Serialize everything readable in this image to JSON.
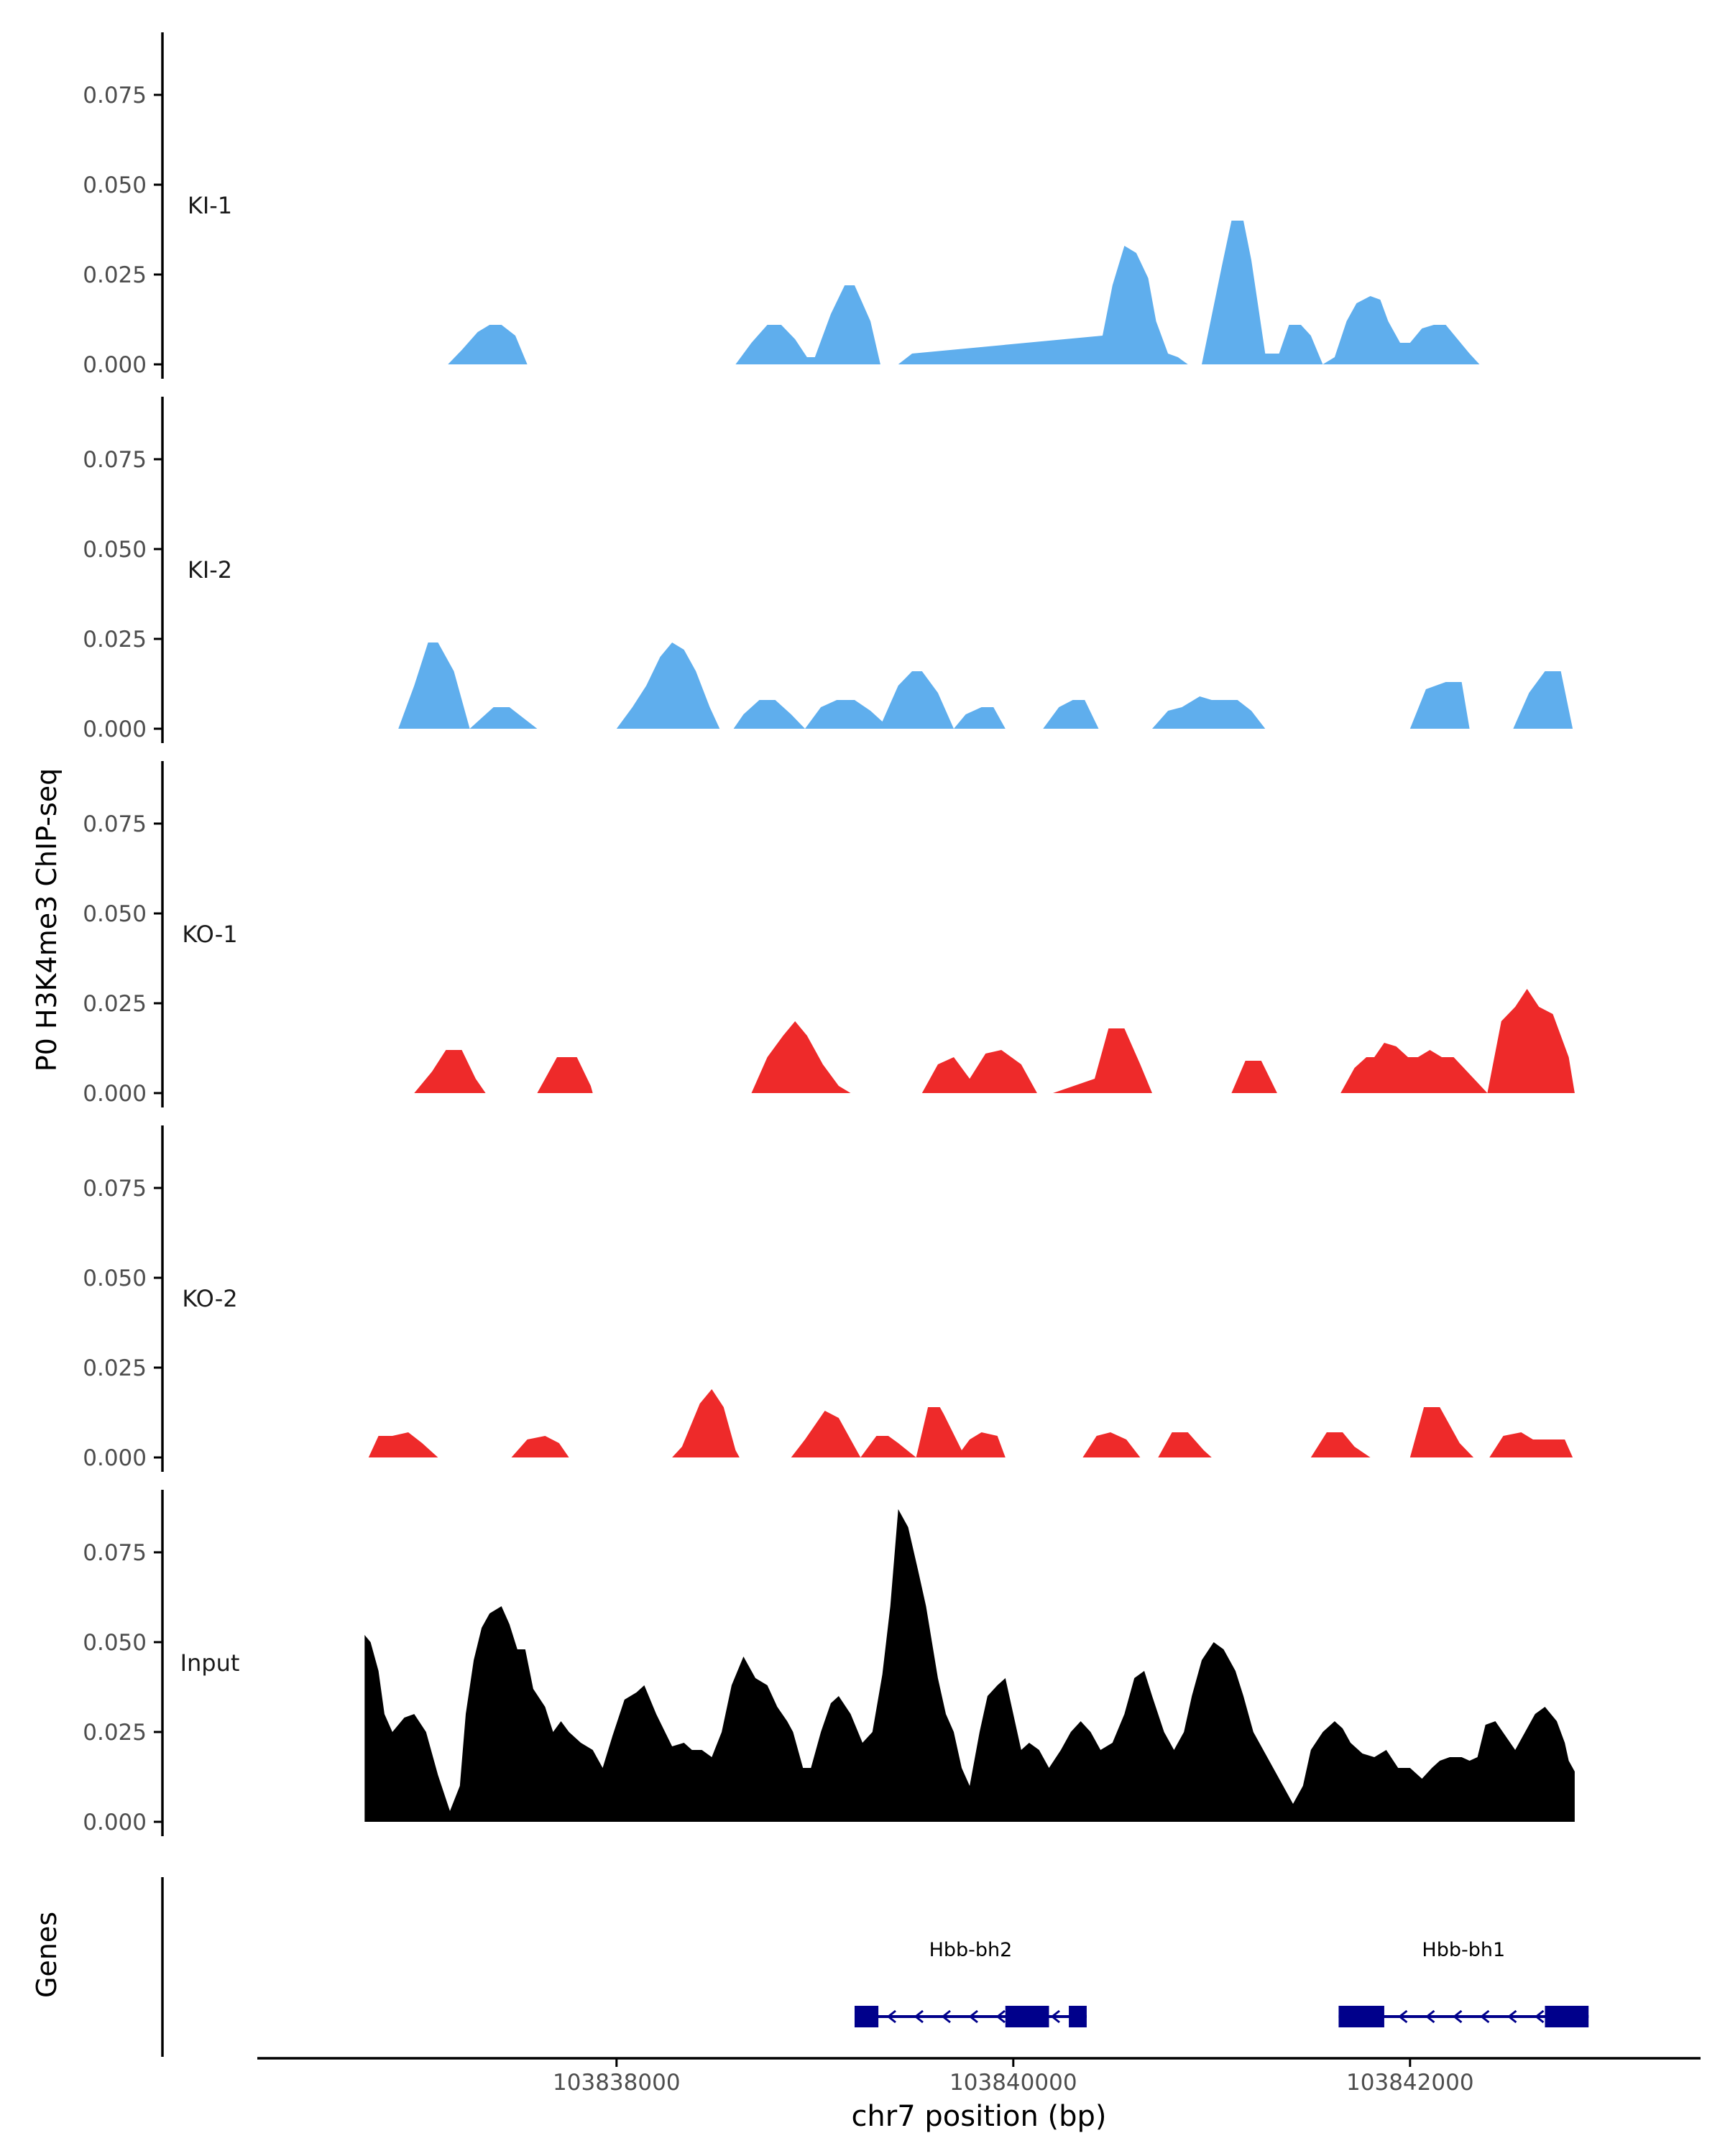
{
  "chart_data": {
    "type": "area",
    "ylabel": "P0 H3K4me3 ChIP-seq",
    "xlabel": "chr7 position (bp)",
    "xlim": [
      103836200,
      103843450
    ],
    "ylim": [
      0,
      0.092
    ],
    "y_ticks": [
      "0.075",
      "0.050",
      "0.025",
      "0.000"
    ],
    "y_tick_values": [
      0.075,
      0.05,
      0.025,
      0.0
    ],
    "x_ticks": [
      "103838000",
      "103840000",
      "103842000"
    ],
    "x_tick_values": [
      103838000,
      103840000,
      103842000
    ],
    "colors": {
      "KI": "#5faeed",
      "KO": "#ee2a2a",
      "Input": "#000000",
      "gene": "#00008b"
    },
    "tracks": [
      {
        "name": "KI-1",
        "color": "#5faeed",
        "x": [
          103837150,
          103837220,
          103837300,
          103837360,
          103837420,
          103837490,
          103837550,
          103838600,
          103838680,
          103838760,
          103838830,
          103838900,
          103838960,
          103839000,
          103839080,
          103839150,
          103839200,
          103839280,
          103839330,
          103839420,
          103839490,
          103840450,
          103840500,
          103840560,
          103840620,
          103840680,
          103840720,
          103840780,
          103840830,
          103840880,
          103840950,
          103841050,
          103841100,
          103841160,
          103841200,
          103841270,
          103841340,
          103841390,
          103841450,
          103841500,
          103841560,
          103841620,
          103841680,
          103841730,
          103841800,
          103841850,
          103841890,
          103841950,
          103842000,
          103842060,
          103842120,
          103842180,
          103842240,
          103842300,
          103842350,
          103842400
        ],
        "y": [
          0,
          0.004,
          0.009,
          0.011,
          0.011,
          0.008,
          0,
          0,
          0.006,
          0.011,
          0.011,
          0.007,
          0.002,
          0.002,
          0.014,
          0.022,
          0.022,
          0.012,
          0,
          0,
          0.003,
          0.008,
          0.022,
          0.033,
          0.031,
          0.024,
          0.012,
          0.003,
          0.002,
          0,
          0,
          0.027,
          0.04,
          0.04,
          0.029,
          0.003,
          0.003,
          0.011,
          0.011,
          0.008,
          0,
          0.002,
          0.012,
          0.017,
          0.019,
          0.018,
          0.012,
          0.006,
          0.006,
          0.01,
          0.011,
          0.011,
          0.007,
          0.003,
          0,
          0
        ],
        "y_base": 0
      },
      {
        "name": "KI-2",
        "color": "#5faeed",
        "x": [
          103836900,
          103836980,
          103837050,
          103837100,
          103837180,
          103837260,
          103837320,
          103837380,
          103837460,
          103837530,
          103837600,
          103837680,
          103838000,
          103838080,
          103838150,
          103838220,
          103838280,
          103838340,
          103838400,
          103838470,
          103838520,
          103838590,
          103838640,
          103838720,
          103838800,
          103838880,
          103838950,
          103839030,
          103839110,
          103839200,
          103839280,
          103839340,
          103839420,
          103839490,
          103839540,
          103839620,
          103839700,
          103839760,
          103839840,
          103839900,
          103839960,
          103840150,
          103840230,
          103840300,
          103840360,
          103840430,
          103840700,
          103840780,
          103840850,
          103840940,
          103841000,
          103841060,
          103841130,
          103841200,
          103841270,
          103842000,
          103842080,
          103842180,
          103842260,
          103842300,
          103842520,
          103842600,
          103842680,
          103842760,
          103842820
        ],
        "y": [
          0,
          0.012,
          0.024,
          0.024,
          0.016,
          0,
          0.003,
          0.006,
          0.006,
          0.003,
          0,
          0,
          0,
          0.006,
          0.012,
          0.02,
          0.024,
          0.022,
          0.016,
          0.006,
          0,
          0,
          0.004,
          0.008,
          0.008,
          0.004,
          0,
          0.006,
          0.008,
          0.008,
          0.005,
          0.002,
          0.012,
          0.016,
          0.016,
          0.01,
          0,
          0.004,
          0.006,
          0.006,
          0,
          0,
          0.006,
          0.008,
          0.008,
          0,
          0,
          0.005,
          0.006,
          0.009,
          0.008,
          0.008,
          0.008,
          0.005,
          0,
          0,
          0.011,
          0.013,
          0.013,
          0,
          0,
          0.01,
          0.016,
          0.016,
          0
        ],
        "y_base": 0
      },
      {
        "name": "KO-1",
        "color": "#ee2a2a",
        "x": [
          103836980,
          103837070,
          103837140,
          103837220,
          103837290,
          103837340,
          103837600,
          103837700,
          103837800,
          103837870,
          103837880,
          103838680,
          103838760,
          103838840,
          103838900,
          103838960,
          103839040,
          103839120,
          103839180,
          103839540,
          103839620,
          103839700,
          103839780,
          103839860,
          103839940,
          103840040,
          103840120,
          103840200,
          103840410,
          103840480,
          103840560,
          103840640,
          103840700,
          103840740,
          103841100,
          103841170,
          103841250,
          103841330,
          103841650,
          103841720,
          103841780,
          103841820,
          103841870,
          103841930,
          103841990,
          103842040,
          103842100,
          103842160,
          103842220,
          103842390,
          103842460,
          103842530,
          103842590,
          103842650,
          103842720,
          103842800,
          103842830
        ],
        "y": [
          0,
          0.006,
          0.012,
          0.012,
          0.004,
          0,
          0,
          0.01,
          0.01,
          0.002,
          0,
          0,
          0.01,
          0.016,
          0.02,
          0.016,
          0.008,
          0.002,
          0,
          0,
          0.008,
          0.01,
          0.004,
          0.011,
          0.012,
          0.008,
          0,
          0,
          0.004,
          0.018,
          0.018,
          0.008,
          0,
          0,
          0,
          0.009,
          0.009,
          0,
          0,
          0.007,
          0.01,
          0.01,
          0.014,
          0.013,
          0.01,
          0.01,
          0.012,
          0.01,
          0.01,
          0,
          0.02,
          0.024,
          0.029,
          0.024,
          0.022,
          0.01,
          0
        ],
        "y_base": 0
      },
      {
        "name": "KO-2",
        "color": "#ee2a2a",
        "x": [
          103836750,
          103836800,
          103836870,
          103836950,
          103837020,
          103837100,
          103837470,
          103837550,
          103837640,
          103837710,
          103837760,
          103838280,
          103838330,
          103838420,
          103838480,
          103838540,
          103838600,
          103838620,
          103838880,
          103838950,
          103839050,
          103839120,
          103839200,
          103839230,
          103839310,
          103839370,
          103839420,
          103839510,
          103839570,
          103839630,
          103839650,
          103839740,
          103839780,
          103839840,
          103839920,
          103839960,
          103840350,
          103840420,
          103840490,
          103840570,
          103840640,
          103840730,
          103840800,
          103840880,
          103840960,
          103841000,
          103841500,
          103841580,
          103841660,
          103841720,
          103841800,
          103842000,
          103842070,
          103842150,
          103842250,
          103842320,
          103842400,
          103842470,
          103842560,
          103842620,
          103842700,
          103842780,
          103842820
        ],
        "y": [
          0,
          0.006,
          0.006,
          0.007,
          0.004,
          0,
          0,
          0.005,
          0.006,
          0.004,
          0,
          0,
          0.003,
          0.015,
          0.019,
          0.014,
          0.002,
          0,
          0,
          0.005,
          0.013,
          0.011,
          0.003,
          0,
          0.006,
          0.006,
          0.004,
          0,
          0.014,
          0.014,
          0.012,
          0.002,
          0.005,
          0.007,
          0.006,
          0,
          0,
          0.006,
          0.007,
          0.005,
          0,
          0,
          0.007,
          0.007,
          0.002,
          0,
          0,
          0.007,
          0.007,
          0.003,
          0,
          0,
          0.014,
          0.014,
          0.004,
          0,
          0,
          0.006,
          0.007,
          0.005,
          0.005,
          0.005,
          0
        ],
        "y_base": 0
      },
      {
        "name": "Input",
        "color": "#000000",
        "x": [
          103836730,
          103836760,
          103836800,
          103836830,
          103836870,
          103836930,
          103836980,
          103837040,
          103837100,
          103837160,
          103837210,
          103837240,
          103837280,
          103837320,
          103837360,
          103837420,
          103837460,
          103837500,
          103837540,
          103837580,
          103837640,
          103837680,
          103837720,
          103837760,
          103837820,
          103837880,
          103837930,
          103837980,
          103838040,
          103838100,
          103838140,
          103838200,
          103838280,
          103838340,
          103838380,
          103838430,
          103838480,
          103838530,
          103838580,
          103838640,
          103838700,
          103838760,
          103838810,
          103838860,
          103838890,
          103838940,
          103838980,
          103839030,
          103839080,
          103839120,
          103839180,
          103839240,
          103839290,
          103839340,
          103839380,
          103839420,
          103839470,
          103839520,
          103839560,
          103839620,
          103839660,
          103839700,
          103839740,
          103839780,
          103839830,
          103839870,
          103839920,
          103839960,
          103840000,
          103840040,
          103840080,
          103840130,
          103840180,
          103840240,
          103840290,
          103840340,
          103840390,
          103840440,
          103840500,
          103840560,
          103840610,
          103840660,
          103840700,
          103840760,
          103840810,
          103840860,
          103840900,
          103840950,
          103841010,
          103841060,
          103841120,
          103841160,
          103841210,
          103841260,
          103841310,
          103841360,
          103841410,
          103841460,
          103841500,
          103841560,
          103841620,
          103841660,
          103841700,
          103841760,
          103841820,
          103841880,
          103841940,
          103842000,
          103842060,
          103842110,
          103842150,
          103842200,
          103842260,
          103842300,
          103842340,
          103842380,
          103842430,
          103842480,
          103842530,
          103842580,
          103842630,
          103842680,
          103842740,
          103842780,
          103842800,
          103842830,
          103842830
        ],
        "y": [
          0.052,
          0.05,
          0.042,
          0.03,
          0.025,
          0.029,
          0.03,
          0.025,
          0.013,
          0.003,
          0.01,
          0.03,
          0.045,
          0.054,
          0.058,
          0.06,
          0.055,
          0.048,
          0.048,
          0.037,
          0.032,
          0.025,
          0.028,
          0.025,
          0.022,
          0.02,
          0.015,
          0.024,
          0.034,
          0.036,
          0.038,
          0.03,
          0.021,
          0.022,
          0.02,
          0.02,
          0.018,
          0.025,
          0.038,
          0.046,
          0.04,
          0.038,
          0.032,
          0.028,
          0.025,
          0.015,
          0.015,
          0.025,
          0.033,
          0.035,
          0.03,
          0.022,
          0.025,
          0.041,
          0.06,
          0.087,
          0.082,
          0.07,
          0.06,
          0.04,
          0.03,
          0.025,
          0.015,
          0.01,
          0.025,
          0.035,
          0.038,
          0.04,
          0.03,
          0.02,
          0.022,
          0.02,
          0.015,
          0.02,
          0.025,
          0.028,
          0.025,
          0.02,
          0.022,
          0.03,
          0.04,
          0.042,
          0.035,
          0.025,
          0.02,
          0.025,
          0.035,
          0.045,
          0.05,
          0.048,
          0.042,
          0.035,
          0.025,
          0.02,
          0.015,
          0.01,
          0.005,
          0.01,
          0.02,
          0.025,
          0.028,
          0.026,
          0.022,
          0.019,
          0.018,
          0.02,
          0.015,
          0.015,
          0.012,
          0.015,
          0.017,
          0.018,
          0.018,
          0.017,
          0.018,
          0.027,
          0.028,
          0.024,
          0.02,
          0.025,
          0.03,
          0.032,
          0.028,
          0.022,
          0.017,
          0.014,
          0
        ],
        "y_base": 0
      }
    ],
    "genes_label": "Genes",
    "genes": [
      {
        "name": "Hbb-bh2",
        "start": 103839200,
        "end": 103840370,
        "exons": [
          [
            103839200,
            103839320
          ],
          [
            103839960,
            103840180
          ],
          [
            103840280,
            103840370
          ]
        ]
      },
      {
        "name": "Hbb-bh1",
        "start": 103841640,
        "end": 103842900,
        "exons": [
          [
            103841640,
            103841870
          ],
          [
            103842680,
            103842900
          ]
        ]
      }
    ]
  }
}
